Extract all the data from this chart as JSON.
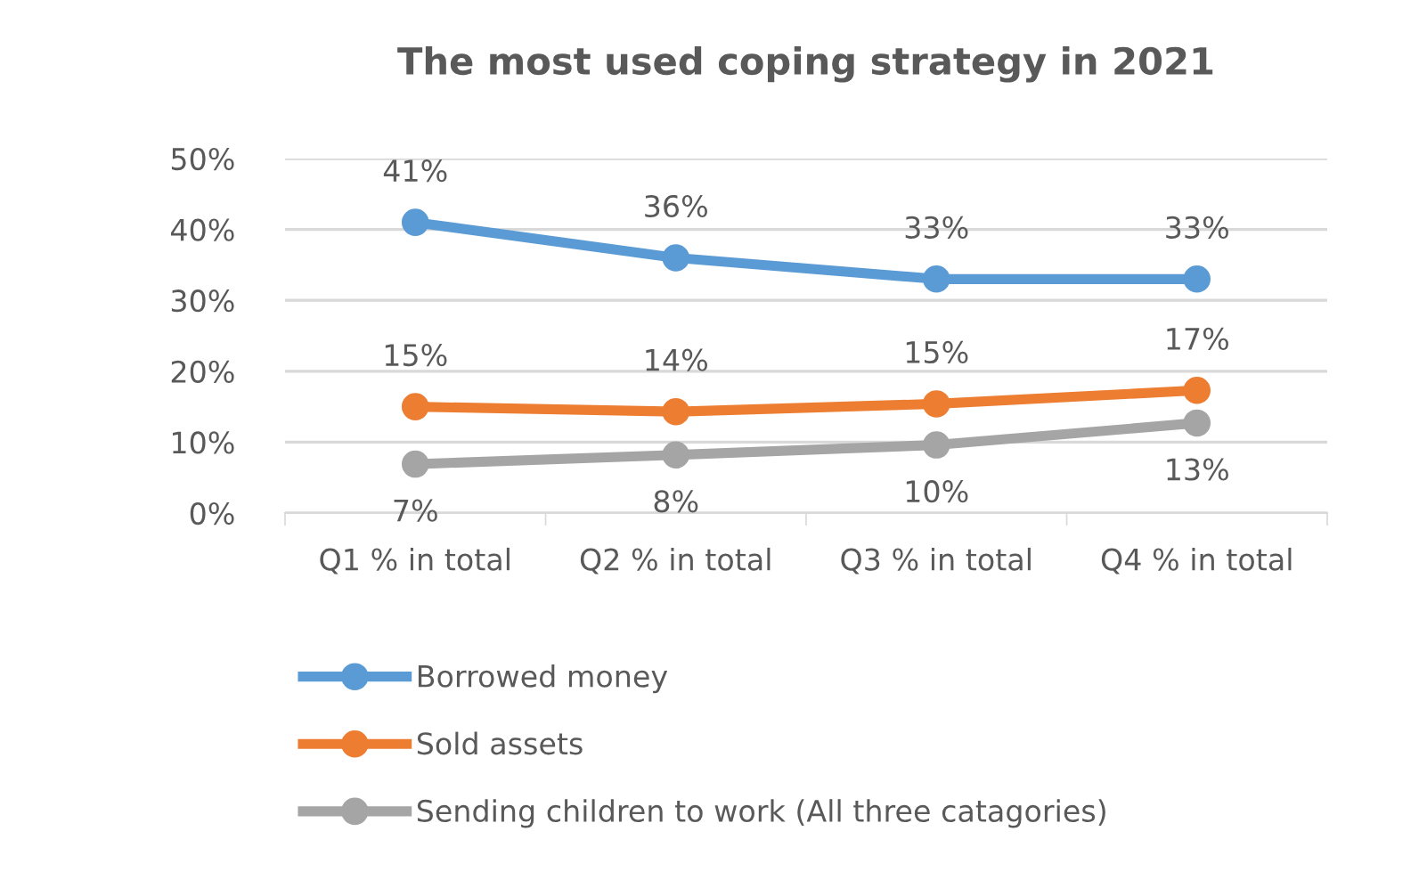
{
  "chart_data": {
    "type": "line",
    "title": "The most used coping strategy in 2021",
    "categories": [
      "Q1 % in total",
      "Q2 % in total",
      "Q3 % in total",
      "Q4 % in total"
    ],
    "series": [
      {
        "name": "Borrowed money",
        "color": "#5b9bd5",
        "values": [
          41,
          36,
          33,
          33
        ],
        "value_labels": [
          "41%",
          "36%",
          "33%",
          "33%"
        ]
      },
      {
        "name": "Sold assets",
        "color": "#ed7d31",
        "values": [
          15,
          14.3,
          15.4,
          17.3
        ],
        "value_labels": [
          "15%",
          "14%",
          "15%",
          "17%"
        ]
      },
      {
        "name": "Sending children to work (All three catagories)",
        "color": "#a5a5a5",
        "values": [
          6.9,
          8.2,
          9.6,
          12.7
        ],
        "value_labels": [
          "7%",
          "8%",
          "10%",
          "13%"
        ]
      }
    ],
    "ylim": [
      0,
      50
    ],
    "yticks": [
      {
        "value": 0,
        "label": "0%"
      },
      {
        "value": 10,
        "label": "10%"
      },
      {
        "value": 20,
        "label": "20%"
      },
      {
        "value": 30,
        "label": "30%"
      },
      {
        "value": 40,
        "label": "40%"
      },
      {
        "value": 50,
        "label": "50%"
      }
    ],
    "grid": "y",
    "legend": "bottom",
    "marker": "circle",
    "line_style": "solid"
  }
}
